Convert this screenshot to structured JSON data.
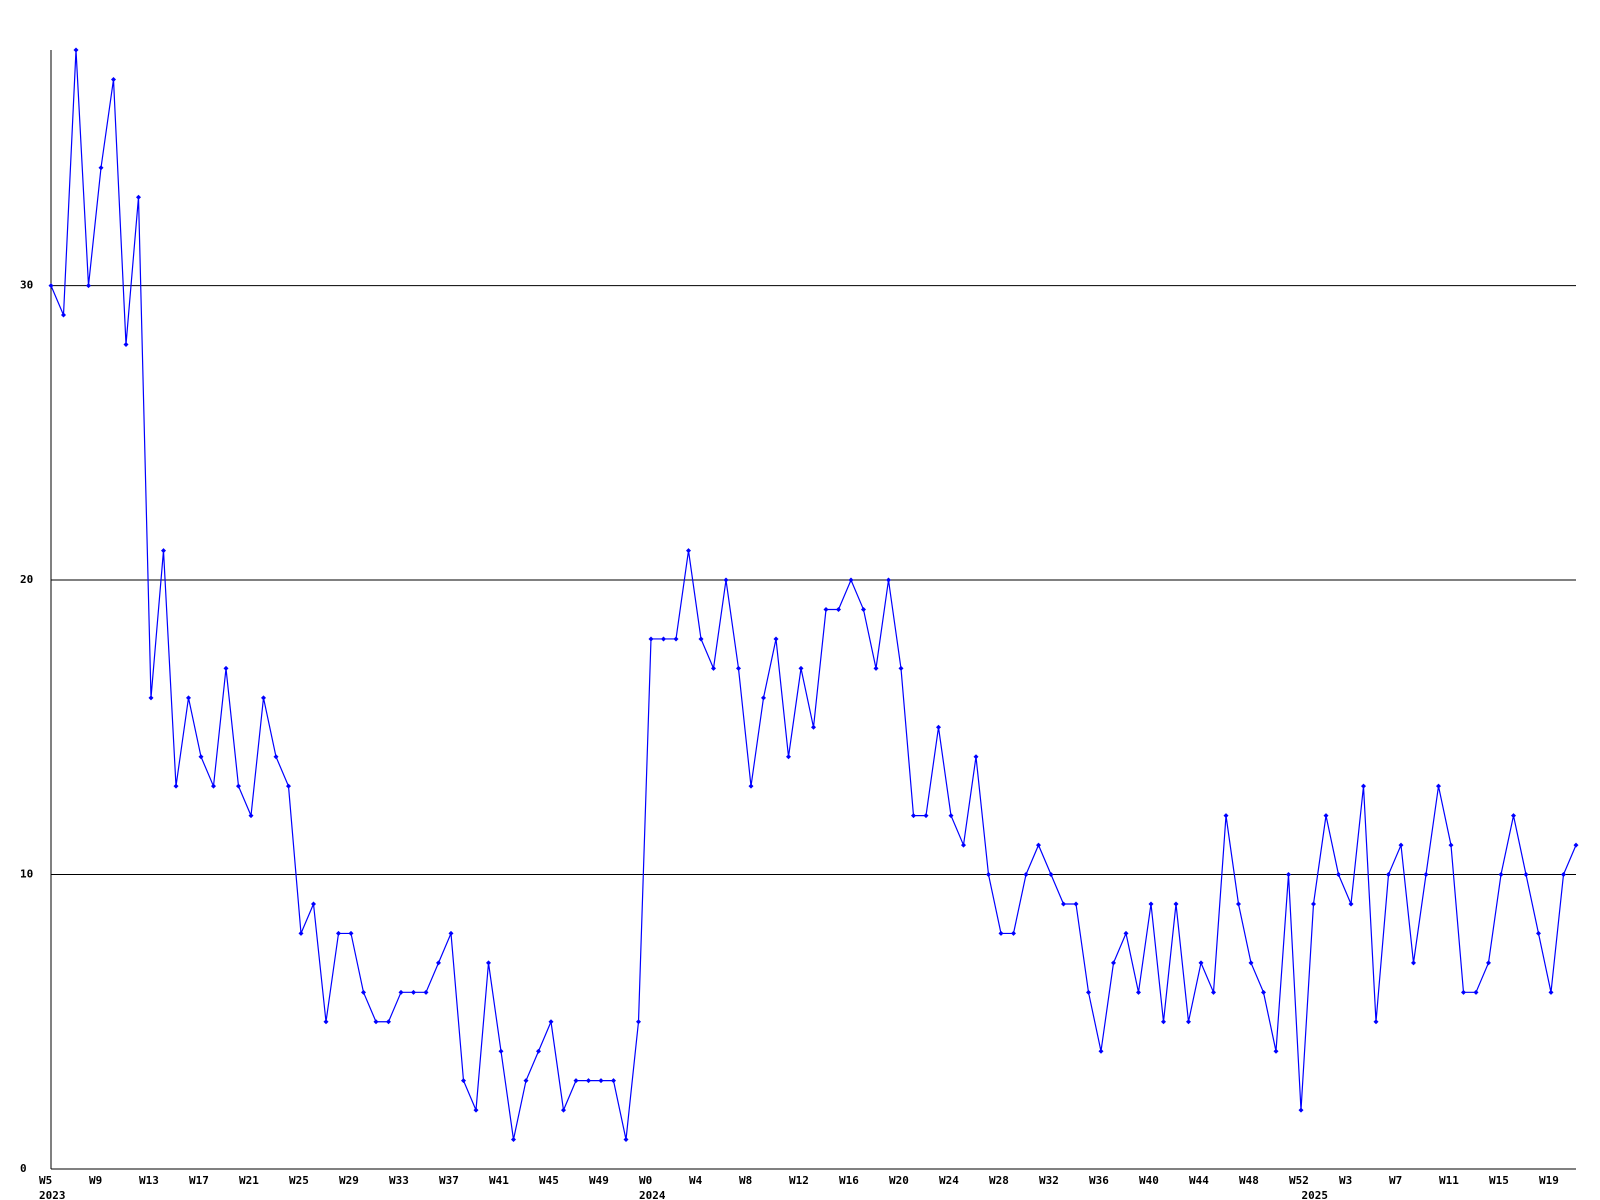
{
  "chart_data": {
    "type": "line",
    "categories": [
      "W5",
      null,
      null,
      null,
      "W9",
      null,
      null,
      null,
      "W13",
      null,
      null,
      null,
      "W17",
      null,
      null,
      null,
      "W21",
      null,
      null,
      null,
      "W25",
      null,
      null,
      null,
      "W29",
      null,
      null,
      null,
      "W33",
      null,
      null,
      null,
      "W37",
      null,
      null,
      null,
      "W41",
      null,
      null,
      null,
      "W45",
      null,
      null,
      null,
      "W49",
      null,
      null,
      null,
      "W0",
      null,
      null,
      null,
      "W4",
      null,
      null,
      null,
      "W8",
      null,
      null,
      null,
      "W12",
      null,
      null,
      null,
      "W16",
      null,
      null,
      null,
      "W20",
      null,
      null,
      null,
      "W24",
      null,
      null,
      null,
      "W28",
      null,
      null,
      null,
      "W32",
      null,
      null,
      null,
      "W36",
      null,
      null,
      null,
      "W40",
      null,
      null,
      null,
      "W44",
      null,
      null,
      null,
      "W48",
      null,
      null,
      null,
      "W52",
      null,
      null,
      null,
      "W3",
      null,
      null,
      null,
      "W7",
      null,
      null,
      null,
      "W11",
      null,
      null,
      null,
      "W15",
      null,
      null,
      null,
      "W19",
      null,
      null
    ],
    "years": [
      "2023",
      null,
      null,
      null,
      null,
      null,
      null,
      null,
      null,
      null,
      null,
      null,
      null,
      null,
      null,
      null,
      null,
      null,
      null,
      null,
      null,
      null,
      null,
      null,
      null,
      null,
      null,
      null,
      null,
      null,
      null,
      null,
      null,
      null,
      null,
      null,
      null,
      null,
      null,
      null,
      null,
      null,
      null,
      null,
      null,
      null,
      null,
      null,
      "2024",
      null,
      null,
      null,
      null,
      null,
      null,
      null,
      null,
      null,
      null,
      null,
      null,
      null,
      null,
      null,
      null,
      null,
      null,
      null,
      null,
      null,
      null,
      null,
      null,
      null,
      null,
      null,
      null,
      null,
      null,
      null,
      null,
      null,
      null,
      null,
      null,
      null,
      null,
      null,
      null,
      null,
      null,
      null,
      null,
      null,
      null,
      null,
      null,
      null,
      null,
      null,
      null,
      "2025",
      null,
      null,
      null,
      null,
      null,
      null,
      null,
      null,
      null,
      null,
      null,
      null,
      null,
      null,
      null,
      null,
      null,
      null,
      null,
      null,
      null
    ],
    "series": [
      {
        "color": "#0000ff",
        "values": [
          30,
          29,
          38,
          30,
          34,
          37,
          28,
          33,
          16,
          21,
          13,
          16,
          14,
          13,
          17,
          13,
          12,
          16,
          14,
          13,
          8,
          9,
          5,
          8,
          8,
          6,
          5,
          5,
          6,
          6,
          6,
          7,
          8,
          3,
          2,
          7,
          4,
          1,
          3,
          4,
          5,
          2,
          3,
          3,
          3,
          3,
          1,
          5,
          18,
          18,
          18,
          21,
          18,
          17,
          20,
          17,
          13,
          16,
          18,
          14,
          17,
          15,
          19,
          19,
          20,
          19,
          17,
          20,
          17,
          12,
          12,
          15,
          12,
          11,
          14,
          10,
          8,
          8,
          10,
          11,
          10,
          9,
          9,
          6,
          4,
          7,
          8,
          6,
          9,
          5,
          9,
          5,
          7,
          6,
          12,
          9,
          7,
          6,
          4,
          10,
          2,
          9,
          12,
          10,
          9,
          13,
          5,
          10,
          11,
          7,
          10,
          13,
          11,
          6,
          6,
          7,
          10,
          12,
          10,
          8,
          6,
          10,
          11
        ]
      }
    ],
    "ylim": [
      0,
      38
    ],
    "yticks": [
      0,
      10,
      20,
      30
    ],
    "grid": true
  }
}
